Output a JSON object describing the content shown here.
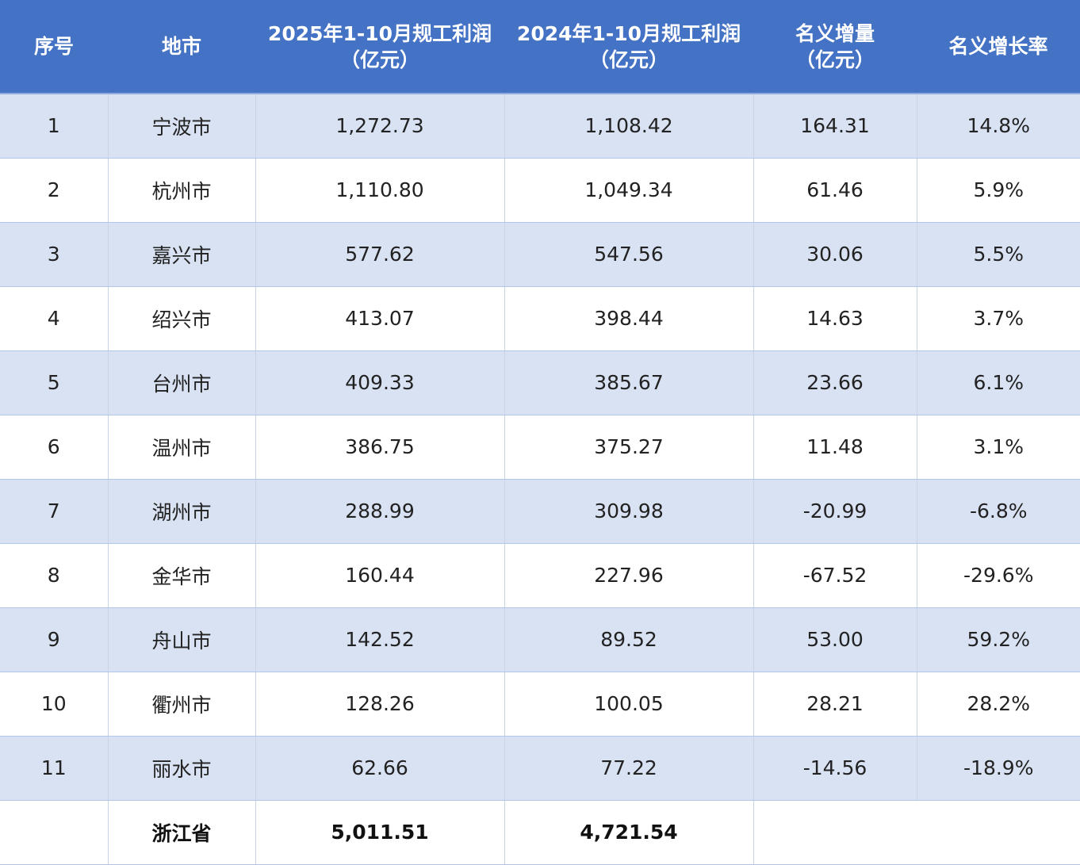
{
  "table": {
    "headers": [
      {
        "line1": "序号",
        "line2": ""
      },
      {
        "line1": "地市",
        "line2": ""
      },
      {
        "line1": "2025年1-10月规工利润",
        "line2": "（亿元）"
      },
      {
        "line1": "2024年1-10月规工利润",
        "line2": "（亿元）"
      },
      {
        "line1": "名义增量",
        "line2": "（亿元）"
      },
      {
        "line1": "名义增长率",
        "line2": ""
      }
    ],
    "rows": [
      {
        "no": "1",
        "city": "宁波市",
        "p2025": "1,272.73",
        "p2024": "1,108.42",
        "delta": "164.31",
        "rate": "14.8%"
      },
      {
        "no": "2",
        "city": "杭州市",
        "p2025": "1,110.80",
        "p2024": "1,049.34",
        "delta": "61.46",
        "rate": "5.9%"
      },
      {
        "no": "3",
        "city": "嘉兴市",
        "p2025": "577.62",
        "p2024": "547.56",
        "delta": "30.06",
        "rate": "5.5%"
      },
      {
        "no": "4",
        "city": "绍兴市",
        "p2025": "413.07",
        "p2024": "398.44",
        "delta": "14.63",
        "rate": "3.7%"
      },
      {
        "no": "5",
        "city": "台州市",
        "p2025": "409.33",
        "p2024": "385.67",
        "delta": "23.66",
        "rate": "6.1%"
      },
      {
        "no": "6",
        "city": "温州市",
        "p2025": "386.75",
        "p2024": "375.27",
        "delta": "11.48",
        "rate": "3.1%"
      },
      {
        "no": "7",
        "city": "湖州市",
        "p2025": "288.99",
        "p2024": "309.98",
        "delta": "-20.99",
        "rate": "-6.8%"
      },
      {
        "no": "8",
        "city": "金华市",
        "p2025": "160.44",
        "p2024": "227.96",
        "delta": "-67.52",
        "rate": "-29.6%"
      },
      {
        "no": "9",
        "city": "舟山市",
        "p2025": "142.52",
        "p2024": "89.52",
        "delta": "53.00",
        "rate": "59.2%"
      },
      {
        "no": "10",
        "city": "衢州市",
        "p2025": "128.26",
        "p2024": "100.05",
        "delta": "28.21",
        "rate": "28.2%"
      },
      {
        "no": "11",
        "city": "丽水市",
        "p2025": "62.66",
        "p2024": "77.22",
        "delta": "-14.56",
        "rate": "-18.9%"
      }
    ],
    "total": {
      "no": "",
      "city": "浙江省",
      "p2025": "5,011.51",
      "p2024": "4,721.54",
      "delta": "",
      "rate": ""
    }
  },
  "colors": {
    "header_bg": "#4472c4",
    "header_text": "#ffffff",
    "row_alt_bg": "#d9e2f3",
    "row_plain_bg": "#ffffff"
  }
}
